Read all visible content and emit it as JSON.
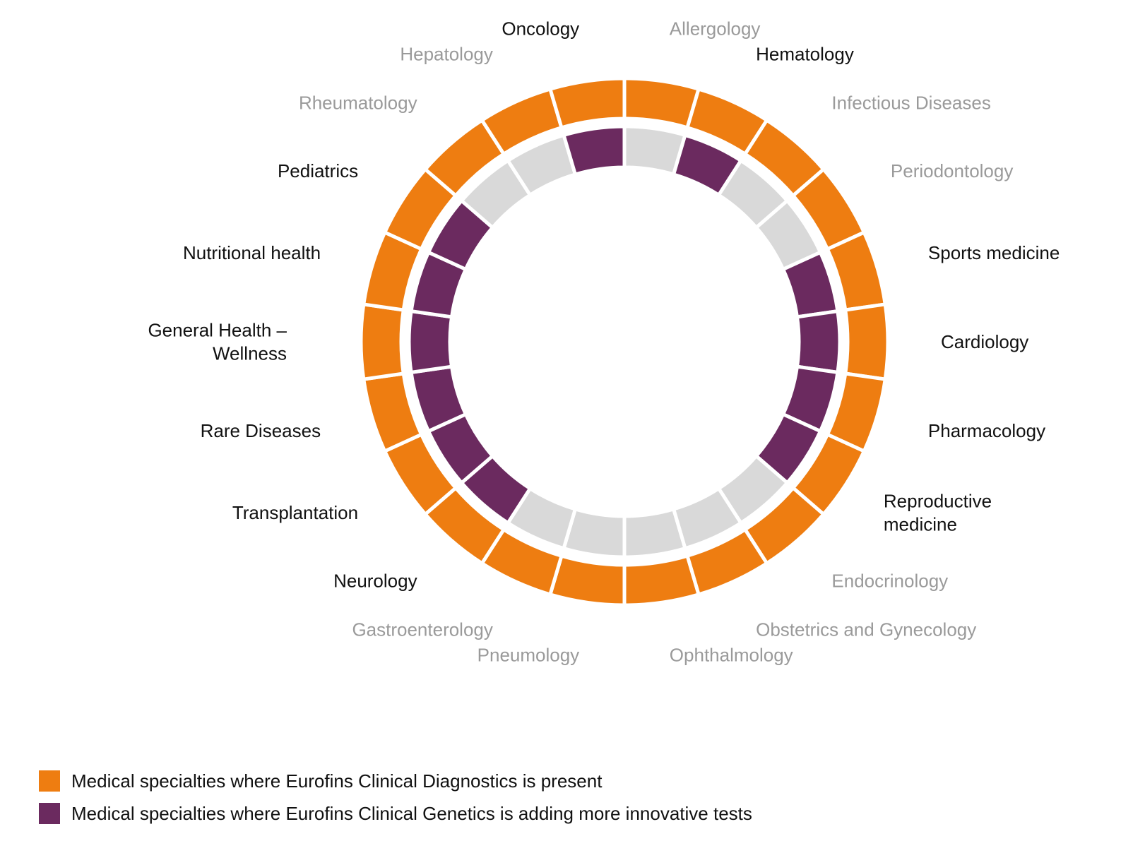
{
  "colors": {
    "present": "#ee7d11",
    "adding": "#6b2a5f",
    "not_adding": "#d9d9d9",
    "label_active": "#111111",
    "label_inactive": "#9a9a9a"
  },
  "specialties": [
    {
      "name": "Allergology",
      "adding": false
    },
    {
      "name": "Hematology",
      "adding": true
    },
    {
      "name": "Infectious Diseases",
      "adding": false
    },
    {
      "name": "Periodontology",
      "adding": false
    },
    {
      "name": "Sports medicine",
      "adding": true
    },
    {
      "name": "Cardiology",
      "adding": true
    },
    {
      "name": "Pharmacology",
      "adding": true
    },
    {
      "name": "Reproductive medicine",
      "adding": true
    },
    {
      "name": "Endocrinology",
      "adding": false
    },
    {
      "name": "Obstetrics and Gynecology",
      "adding": false
    },
    {
      "name": "Ophthalmology",
      "adding": false
    },
    {
      "name": "Pneumology",
      "adding": false
    },
    {
      "name": "Gastroenterology",
      "adding": false
    },
    {
      "name": "Neurology",
      "adding": true
    },
    {
      "name": "Transplantation",
      "adding": true
    },
    {
      "name": "Rare Diseases",
      "adding": true
    },
    {
      "name": "General Health – Wellness",
      "adding": true
    },
    {
      "name": "Nutritional health",
      "adding": true
    },
    {
      "name": "Pediatrics",
      "adding": true
    },
    {
      "name": "Rheumatology",
      "adding": false
    },
    {
      "name": "Hepatology",
      "adding": false
    },
    {
      "name": "Oncology",
      "adding": true
    }
  ],
  "legend": [
    {
      "label": "Medical specialties where Eurofins Clinical Diagnostics is present",
      "color": "#ee7d11"
    },
    {
      "label": "Medical specialties where Eurofins Clinical Genetics is adding more innovative tests",
      "color": "#6b2a5f"
    }
  ]
}
